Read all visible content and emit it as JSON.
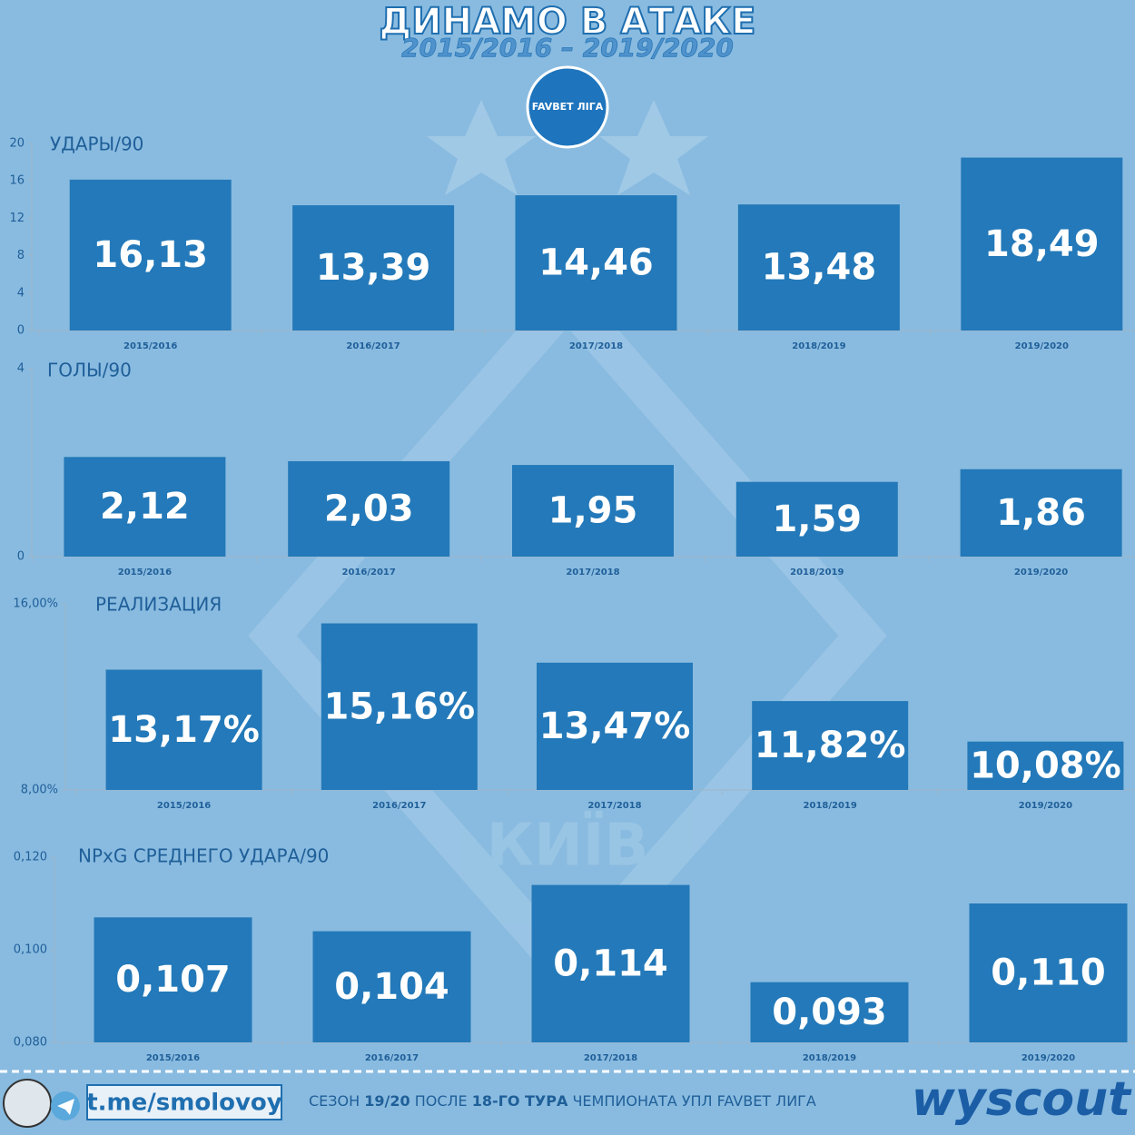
{
  "header": {
    "title": "ДИНАМО В АТАКЕ",
    "subtitle": "2015/2016 – 2019/2020",
    "league": "FAVBET ЛІГА",
    "watermark": "КИЇВ"
  },
  "chart_data": [
    {
      "type": "bar",
      "title": "УДАРЫ/90",
      "categories": [
        "2015/2016",
        "2016/2017",
        "2017/2018",
        "2018/2019",
        "2019/2020"
      ],
      "values": [
        16.13,
        13.39,
        14.46,
        13.48,
        18.49
      ],
      "value_labels": [
        "16,13",
        "13,39",
        "14,46",
        "13,48",
        "18,49"
      ],
      "color": "#2379b9",
      "ylim": [
        0,
        20
      ],
      "yticks": [
        0,
        4,
        8,
        12,
        16,
        20
      ]
    },
    {
      "type": "bar",
      "title": "ГОЛЫ/90",
      "categories": [
        "2015/2016",
        "2016/2017",
        "2017/2018",
        "2018/2019",
        "2019/2020"
      ],
      "values": [
        2.12,
        2.03,
        1.95,
        1.59,
        1.86
      ],
      "value_labels": [
        "2,12",
        "2,03",
        "1,95",
        "1,59",
        "1,86"
      ],
      "color": "#2379b9",
      "ylim": [
        0,
        4
      ],
      "yticks": [
        0,
        4
      ]
    },
    {
      "type": "bar",
      "title": "РЕАЛИЗАЦИЯ",
      "categories": [
        "2015/2016",
        "2016/2017",
        "2017/2018",
        "2018/2019",
        "2019/2020"
      ],
      "values": [
        13.17,
        15.16,
        13.47,
        11.82,
        10.08
      ],
      "value_labels": [
        "13,17%",
        "15,16%",
        "13,47%",
        "11,82%",
        "10,08%"
      ],
      "color": "#2379b9",
      "ylim": [
        8,
        16
      ],
      "yticks": [
        {
          "value": 8,
          "label": "8,00%"
        },
        {
          "value": 16,
          "label": "16,00%"
        }
      ]
    },
    {
      "type": "bar",
      "title": "NPxG СРЕДНЕГО УДАРА/90",
      "categories": [
        "2015/2016",
        "2016/2017",
        "2017/2018",
        "2018/2019",
        "2019/2020"
      ],
      "values": [
        0.107,
        0.104,
        0.114,
        0.093,
        0.11
      ],
      "value_labels": [
        "0,107",
        "0,104",
        "0,114",
        "0,093",
        "0,110"
      ],
      "color": "#2379b9",
      "ylim": [
        0.08,
        0.12
      ],
      "yticks": [
        {
          "value": 0.08,
          "label": "0,080"
        },
        {
          "value": 0.1,
          "label": "0,100"
        },
        {
          "value": 0.12,
          "label": "0,120"
        }
      ]
    }
  ],
  "footer": {
    "link": "t.me/smolovoy",
    "caption": [
      {
        "text": "СЕЗОН ",
        "bold": false
      },
      {
        "text": "19/20",
        "bold": true
      },
      {
        "text": " ПОСЛЕ ",
        "bold": false
      },
      {
        "text": "18-ГО ТУРА",
        "bold": true
      },
      {
        "text": " ЧЕМПИОНАТА УПЛ FAVBET ЛИГА",
        "bold": false
      }
    ],
    "brand": "wyscout"
  }
}
